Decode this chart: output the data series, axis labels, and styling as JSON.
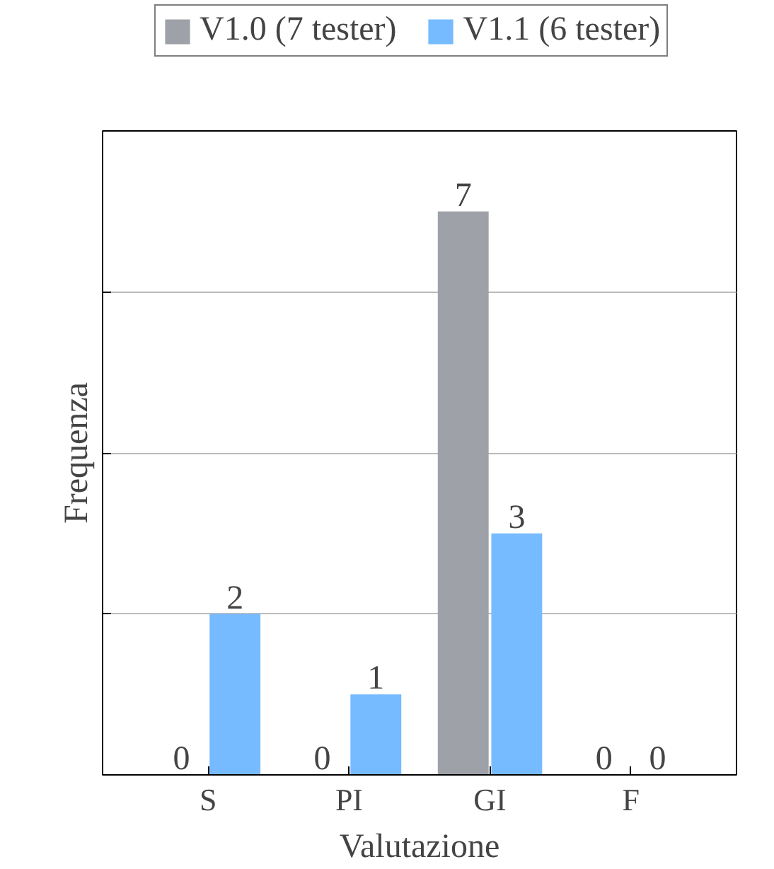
{
  "chart_data": {
    "type": "bar",
    "xlabel": "Valutazione",
    "ylabel": "Frequenza",
    "categories": [
      "S",
      "PI",
      "GI",
      "F"
    ],
    "series": [
      {
        "name": "V1.0 (7 tester)",
        "color": "#9ea2a8",
        "values": [
          0,
          0,
          7,
          0
        ]
      },
      {
        "name": "V1.1 (6 tester)",
        "color": "#76bbff",
        "values": [
          2,
          1,
          3,
          0
        ]
      }
    ],
    "ylim": [
      0,
      8
    ],
    "yticks": [
      {
        "value": 0,
        "label": null
      },
      {
        "value": 2,
        "label": null
      },
      {
        "value": 4,
        "label": null
      },
      {
        "value": 6,
        "label": null
      },
      {
        "value": 8,
        "label": null
      }
    ],
    "tick_labels": "x",
    "grid": "y",
    "legend": "top",
    "data_labels": true
  }
}
